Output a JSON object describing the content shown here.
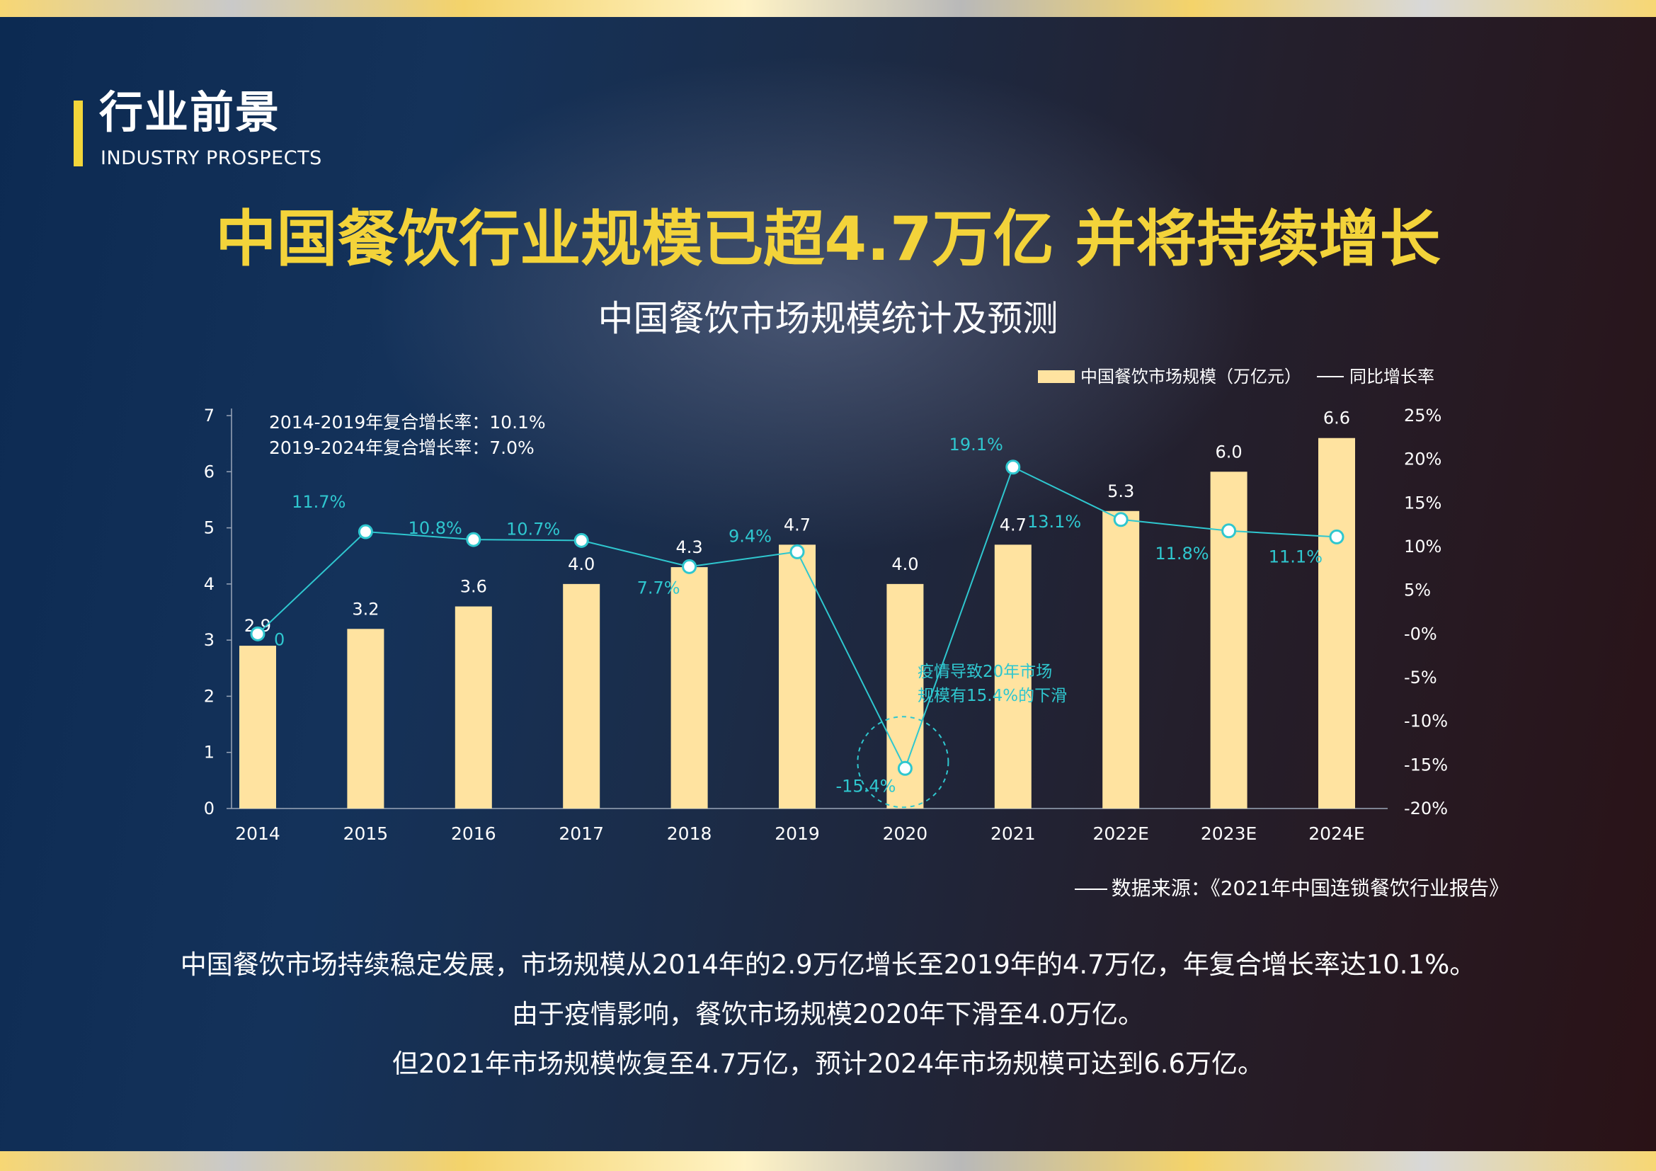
{
  "section": {
    "title": "行业前景",
    "subtitle": "INDUSTRY PROSPECTS"
  },
  "headline": "中国餐饮行业规模已超4.7万亿 并将持续增长",
  "cagr_notes": [
    "2014-2019年复合增长率：10.1%",
    "2019-2024年复合增长率：7.0%"
  ],
  "annotation": [
    "疫情导致20年市场",
    "规模有15.4%的下滑"
  ],
  "source": "数据来源：《2021年中国连锁餐饮行业报告》",
  "paragraphs": [
    "中国餐饮市场持续稳定发展，市场规模从2014年的2.9万亿增长至2019年的4.7万亿，年复合增长率达10.1%。",
    "由于疫情影响，餐饮市场规模2020年下滑至4.0万亿。",
    "但2021年市场规模恢复至4.7万亿，预计2024年市场规模可达到6.6万亿。"
  ],
  "colors": {
    "bar": "#ffe3a0",
    "line": "#2fc7cf",
    "headline": "#f3d33a",
    "accent": "#f3d63a"
  },
  "chart_data": {
    "type": "bar",
    "title": "中国餐饮市场规模统计及预测",
    "categories": [
      "2014",
      "2015",
      "2016",
      "2017",
      "2018",
      "2019",
      "2020",
      "2021",
      "2022E",
      "2023E",
      "2024E"
    ],
    "series": [
      {
        "name": "中国餐饮市场规模（万亿元）",
        "type": "bar",
        "axis": "left",
        "values": [
          2.9,
          3.2,
          3.6,
          4.0,
          4.3,
          4.7,
          4.0,
          4.7,
          5.3,
          6.0,
          6.6
        ],
        "labels": [
          "2.9",
          "3.2",
          "3.6",
          "4.0",
          "4.3",
          "4.7",
          "4.0",
          "4.7",
          "5.3",
          "6.0",
          "6.6"
        ]
      },
      {
        "name": "同比增长率",
        "type": "line",
        "axis": "right",
        "values": [
          0,
          11.7,
          10.8,
          10.7,
          7.7,
          9.4,
          -15.4,
          19.1,
          13.1,
          11.8,
          11.1
        ],
        "labels": [
          "0",
          "11.7%",
          "10.8%",
          "10.7%",
          "7.7%",
          "9.4%",
          "-15.4%",
          "19.1%",
          "13.1%",
          "11.8%",
          "11.1%"
        ]
      }
    ],
    "ylim_left": [
      0,
      7
    ],
    "yticks_left": [
      "0",
      "1",
      "2",
      "3",
      "4",
      "5",
      "6",
      "7"
    ],
    "ylim_right": [
      -20,
      25
    ],
    "yticks_right": [
      "-20%",
      "-15%",
      "-10%",
      "-5%",
      "-0%",
      "5%",
      "10%",
      "15%",
      "20%",
      "25%"
    ],
    "legend": "top-right",
    "grid": false
  }
}
